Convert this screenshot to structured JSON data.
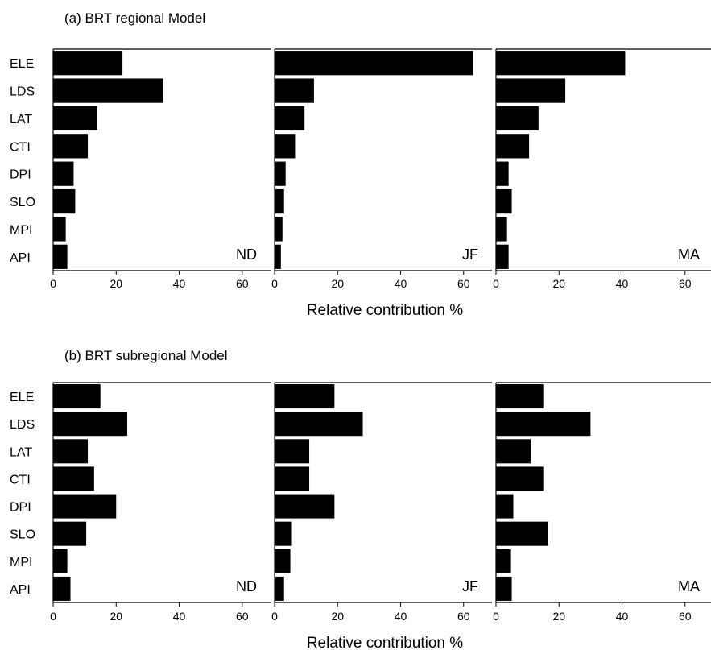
{
  "chart_data": [
    {
      "type": "bar",
      "orientation": "horizontal",
      "title": "(a) BRT regional Model",
      "xlabel": "Relative contribution %",
      "categories": [
        "ELE",
        "LDS",
        "LAT",
        "CTI",
        "DPI",
        "SLO",
        "MPI",
        "API"
      ],
      "xlim": [
        0,
        69
      ],
      "xticks": [
        0,
        20,
        40,
        60
      ],
      "color": "#000000",
      "panels": [
        {
          "label": "ND",
          "values": [
            22,
            35,
            14,
            11,
            6.5,
            7,
            4,
            4.5
          ]
        },
        {
          "label": "JF",
          "values": [
            63,
            12.5,
            9.5,
            6.5,
            3.5,
            3,
            2.5,
            2
          ]
        },
        {
          "label": "MA",
          "values": [
            41,
            22,
            13.5,
            10.5,
            4,
            5,
            3.5,
            4
          ]
        }
      ]
    },
    {
      "type": "bar",
      "orientation": "horizontal",
      "title": "(b) BRT subregional Model",
      "xlabel": "Relative contribution %",
      "categories": [
        "ELE",
        "LDS",
        "LAT",
        "CTI",
        "DPI",
        "SLO",
        "MPI",
        "API"
      ],
      "xlim": [
        0,
        69
      ],
      "xticks": [
        0,
        20,
        40,
        60
      ],
      "color": "#000000",
      "panels": [
        {
          "label": "ND",
          "values": [
            15,
            23.5,
            11,
            13,
            20,
            10.5,
            4.5,
            5.5
          ]
        },
        {
          "label": "JF",
          "values": [
            19,
            28,
            11,
            11,
            19,
            5.5,
            5,
            3
          ]
        },
        {
          "label": "MA",
          "values": [
            15,
            30,
            11,
            15,
            5.5,
            16.5,
            4.5,
            5
          ]
        }
      ]
    }
  ]
}
